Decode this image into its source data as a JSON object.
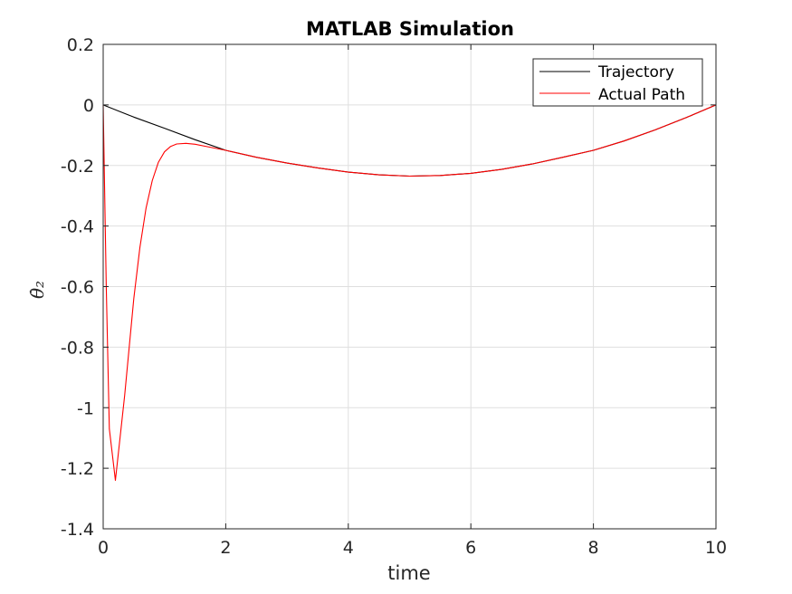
{
  "chart_data": {
    "type": "line",
    "title": "MATLAB Simulation",
    "xlabel": "time",
    "ylabel": "θ̇₂",
    "xlim": [
      0,
      10
    ],
    "ylim": [
      -1.4,
      0.2
    ],
    "xticks": [
      0,
      2,
      4,
      6,
      8,
      10
    ],
    "yticks": [
      0.2,
      0,
      -0.2,
      -0.4,
      -0.6,
      -0.8,
      -1,
      -1.2,
      -1.4
    ],
    "xtick_labels": [
      "0",
      "2",
      "4",
      "6",
      "8",
      "10"
    ],
    "ytick_labels": [
      "0.2",
      "0",
      "-0.2",
      "-0.4",
      "-0.6",
      "-0.8",
      "-1",
      "-1.2",
      "-1.4"
    ],
    "grid": true,
    "legend_position": "top-right",
    "series": [
      {
        "name": "Trajectory",
        "color": "#000000",
        "x": [
          0,
          0.5,
          1.0,
          1.5,
          2.0,
          2.5,
          3.0,
          3.5,
          4.0,
          4.5,
          5.0,
          5.5,
          6.0,
          6.5,
          7.0,
          7.5,
          8.0,
          8.5,
          9.0,
          9.5,
          10.0
        ],
        "y": [
          0,
          -0.04,
          -0.077,
          -0.115,
          -0.15,
          -0.173,
          -0.192,
          -0.208,
          -0.222,
          -0.231,
          -0.235,
          -0.233,
          -0.226,
          -0.213,
          -0.195,
          -0.173,
          -0.15,
          -0.119,
          -0.083,
          -0.043,
          0
        ]
      },
      {
        "name": "Actual Path",
        "color": "#ff0000",
        "x": [
          0,
          0.05,
          0.1,
          0.2,
          0.35,
          0.5,
          0.6,
          0.7,
          0.8,
          0.9,
          1.0,
          1.1,
          1.2,
          1.35,
          1.5,
          1.7,
          2.0,
          2.5,
          3.0,
          3.5,
          4.0,
          4.5,
          5.0,
          5.5,
          6.0,
          6.5,
          7.0,
          7.5,
          8.0,
          8.5,
          9.0,
          9.5,
          10.0
        ],
        "y": [
          0,
          -0.6,
          -1.07,
          -1.24,
          -0.96,
          -0.64,
          -0.47,
          -0.34,
          -0.25,
          -0.19,
          -0.155,
          -0.137,
          -0.129,
          -0.127,
          -0.13,
          -0.138,
          -0.15,
          -0.173,
          -0.192,
          -0.208,
          -0.222,
          -0.231,
          -0.235,
          -0.233,
          -0.226,
          -0.213,
          -0.195,
          -0.173,
          -0.15,
          -0.119,
          -0.083,
          -0.043,
          0
        ]
      }
    ]
  }
}
